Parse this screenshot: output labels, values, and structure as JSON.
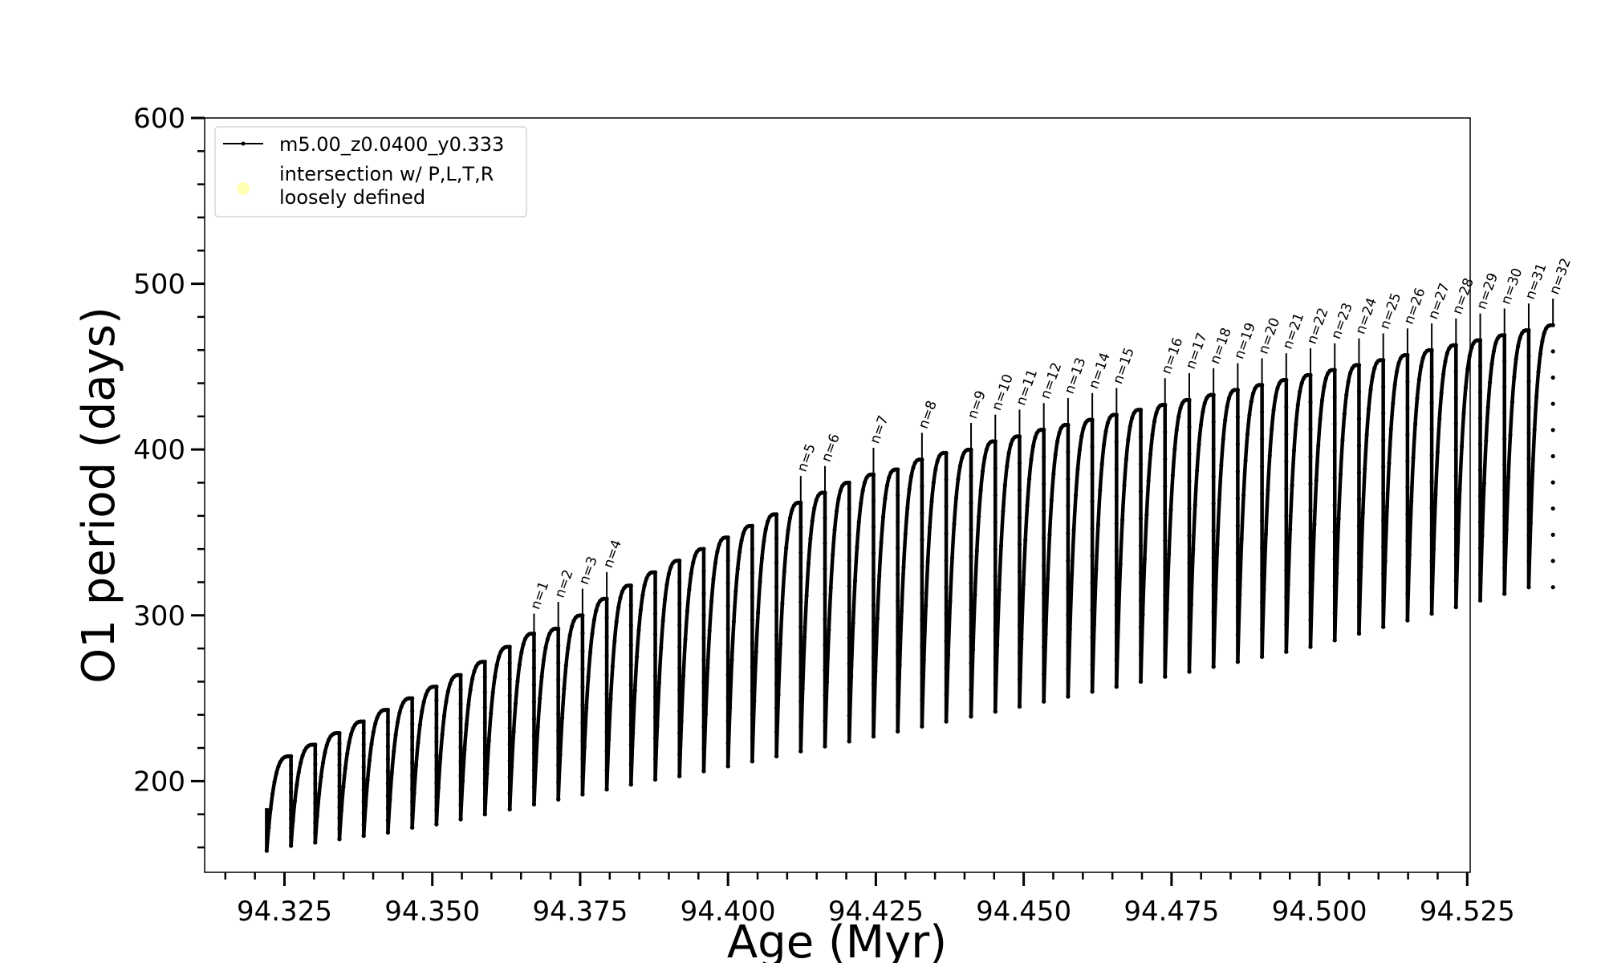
{
  "chart_data": {
    "type": "line",
    "title": "",
    "xlabel": "Age (Myr)",
    "ylabel": "O1 period (days)",
    "xlim": [
      94.3115,
      94.5255
    ],
    "ylim": [
      145,
      600
    ],
    "xticks": [
      94.325,
      94.35,
      94.375,
      94.4,
      94.425,
      94.45,
      94.475,
      94.5,
      94.525
    ],
    "xtick_labels": [
      "94.325",
      "94.350",
      "94.375",
      "94.400",
      "94.425",
      "94.450",
      "94.475",
      "94.500",
      "94.525"
    ],
    "yticks": [
      200,
      300,
      400,
      500,
      600
    ],
    "ytick_labels": [
      "200",
      "300",
      "400",
      "500",
      "600"
    ],
    "grid": false,
    "legend": {
      "placement": "top-left",
      "entries": [
        {
          "label": "m5.00_z0.0400_y0.333",
          "style": "line-with-dots",
          "color": "#000000"
        },
        {
          "label_lines": [
            "intersection w/ P,L,T,R",
            "loosely defined"
          ],
          "style": "marker",
          "color": "#ffffb3"
        }
      ]
    },
    "series": [
      {
        "name": "m5.00_z0.0400_y0.333",
        "color": "#000000",
        "description_of_shape": "repeating sawtooth: each thermal pulse cycle starts at a low period, rises quickly and saturates at a peak, then drops sharply",
        "cycles": [
          {
            "start": 94.322,
            "end": 94.3261,
            "min": 158,
            "peak": 215
          },
          {
            "start": 94.3261,
            "end": 94.3302,
            "min": 161,
            "peak": 222
          },
          {
            "start": 94.3302,
            "end": 94.3343,
            "min": 163,
            "peak": 229
          },
          {
            "start": 94.3343,
            "end": 94.3384,
            "min": 165,
            "peak": 236
          },
          {
            "start": 94.3384,
            "end": 94.3425,
            "min": 167,
            "peak": 243
          },
          {
            "start": 94.3425,
            "end": 94.3466,
            "min": 169,
            "peak": 250
          },
          {
            "start": 94.3466,
            "end": 94.3507,
            "min": 172,
            "peak": 257
          },
          {
            "start": 94.3507,
            "end": 94.3548,
            "min": 174,
            "peak": 264
          },
          {
            "start": 94.3548,
            "end": 94.3589,
            "min": 177,
            "peak": 272
          },
          {
            "start": 94.3589,
            "end": 94.3631,
            "min": 180,
            "peak": 281
          },
          {
            "start": 94.3631,
            "end": 94.3672,
            "min": 183,
            "peak": 289,
            "label": "n=1"
          },
          {
            "start": 94.3672,
            "end": 94.3713,
            "min": 186,
            "peak": 292,
            "label": "n=2"
          },
          {
            "start": 94.3713,
            "end": 94.3754,
            "min": 189,
            "peak": 300,
            "label": "n=3"
          },
          {
            "start": 94.3754,
            "end": 94.3795,
            "min": 192,
            "peak": 310,
            "label": "n=4"
          },
          {
            "start": 94.3795,
            "end": 94.3836,
            "min": 195,
            "peak": 318
          },
          {
            "start": 94.3836,
            "end": 94.3877,
            "min": 198,
            "peak": 326
          },
          {
            "start": 94.3877,
            "end": 94.3918,
            "min": 201,
            "peak": 333
          },
          {
            "start": 94.3918,
            "end": 94.3959,
            "min": 203,
            "peak": 340
          },
          {
            "start": 94.3959,
            "end": 94.4,
            "min": 206,
            "peak": 347
          },
          {
            "start": 94.4,
            "end": 94.4041,
            "min": 209,
            "peak": 354
          },
          {
            "start": 94.4041,
            "end": 94.4082,
            "min": 212,
            "peak": 361
          },
          {
            "start": 94.4082,
            "end": 94.4123,
            "min": 215,
            "peak": 368,
            "label": "n=5"
          },
          {
            "start": 94.4123,
            "end": 94.4164,
            "min": 218,
            "peak": 374,
            "label": "n=6"
          },
          {
            "start": 94.4164,
            "end": 94.4205,
            "min": 221,
            "peak": 380
          },
          {
            "start": 94.4205,
            "end": 94.4246,
            "min": 224,
            "peak": 385,
            "label": "n=7"
          },
          {
            "start": 94.4246,
            "end": 94.4287,
            "min": 227,
            "peak": 388
          },
          {
            "start": 94.4287,
            "end": 94.4328,
            "min": 230,
            "peak": 394,
            "label": "n=8"
          },
          {
            "start": 94.4328,
            "end": 94.4369,
            "min": 233,
            "peak": 398
          },
          {
            "start": 94.4369,
            "end": 94.4411,
            "min": 236,
            "peak": 400,
            "label": "n=9"
          },
          {
            "start": 94.4411,
            "end": 94.4452,
            "min": 239,
            "peak": 405,
            "label": "n=10"
          },
          {
            "start": 94.4452,
            "end": 94.4493,
            "min": 242,
            "peak": 408,
            "label": "n=11"
          },
          {
            "start": 94.4493,
            "end": 94.4534,
            "min": 245,
            "peak": 412,
            "label": "n=12"
          },
          {
            "start": 94.4534,
            "end": 94.4575,
            "min": 248,
            "peak": 415,
            "label": "n=13"
          },
          {
            "start": 94.4575,
            "end": 94.4616,
            "min": 251,
            "peak": 418,
            "label": "n=14"
          },
          {
            "start": 94.4616,
            "end": 94.4657,
            "min": 254,
            "peak": 421,
            "label": "n=15"
          },
          {
            "start": 94.4657,
            "end": 94.4698,
            "min": 257,
            "peak": 424
          },
          {
            "start": 94.4698,
            "end": 94.4739,
            "min": 260,
            "peak": 427,
            "label": "n=16"
          },
          {
            "start": 94.4739,
            "end": 94.478,
            "min": 263,
            "peak": 430,
            "label": "n=17"
          },
          {
            "start": 94.478,
            "end": 94.4821,
            "min": 266,
            "peak": 433,
            "label": "n=18"
          },
          {
            "start": 94.4821,
            "end": 94.4862,
            "min": 269,
            "peak": 436,
            "label": "n=19"
          },
          {
            "start": 94.4862,
            "end": 94.4903,
            "min": 272,
            "peak": 439,
            "label": "n=20"
          },
          {
            "start": 94.4903,
            "end": 94.4944,
            "min": 275,
            "peak": 442,
            "label": "n=21"
          },
          {
            "start": 94.4944,
            "end": 94.4985,
            "min": 278,
            "peak": 445,
            "label": "n=22"
          },
          {
            "start": 94.4985,
            "end": 94.5026,
            "min": 281,
            "peak": 448,
            "label": "n=23"
          },
          {
            "start": 94.5026,
            "end": 94.5067,
            "min": 285,
            "peak": 451,
            "label": "n=24"
          },
          {
            "start": 94.5067,
            "end": 94.5108,
            "min": 289,
            "peak": 454,
            "label": "n=25"
          },
          {
            "start": 94.5108,
            "end": 94.5149,
            "min": 293,
            "peak": 457,
            "label": "n=26"
          },
          {
            "start": 94.5149,
            "end": 94.519,
            "min": 297,
            "peak": 460,
            "label": "n=27"
          },
          {
            "start": 94.519,
            "end": 94.5231,
            "min": 301,
            "peak": 463,
            "label": "n=28"
          },
          {
            "start": 94.5231,
            "end": 94.5272,
            "min": 305,
            "peak": 466,
            "label": "n=29"
          },
          {
            "start": 94.5272,
            "end": 94.5313,
            "min": 309,
            "peak": 469,
            "label": "n=30"
          },
          {
            "start": 94.5313,
            "end": 94.5354,
            "min": 313,
            "peak": 472,
            "label": "n=31"
          },
          {
            "start": 94.5354,
            "end": 94.5395,
            "min": 317,
            "peak": 475,
            "label": "n=32"
          }
        ]
      }
    ]
  }
}
